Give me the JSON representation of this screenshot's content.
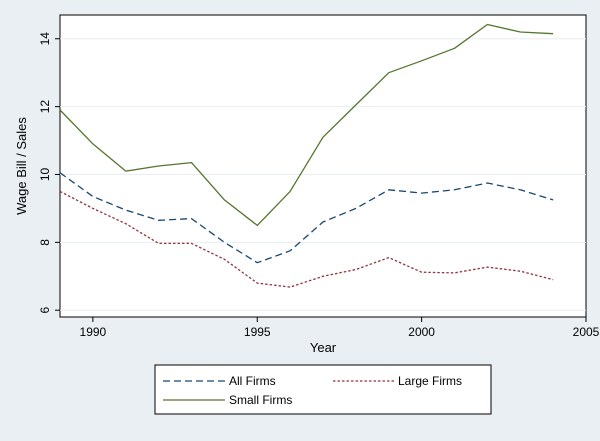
{
  "chart_data": {
    "type": "line",
    "title": "",
    "xlabel": "Year",
    "ylabel": "Wage Bill / Sales",
    "xlim": [
      1989,
      2005
    ],
    "ylim": [
      5.8,
      14.7
    ],
    "xticks": [
      1990,
      1995,
      2000,
      2005
    ],
    "yticks": [
      6,
      8,
      10,
      12,
      14
    ],
    "grid": "horizontal",
    "x": [
      1989,
      1990,
      1991,
      1992,
      1993,
      1994,
      1995,
      1996,
      1997,
      1998,
      1999,
      2000,
      2001,
      2002,
      2003,
      2004
    ],
    "series": [
      {
        "name": "All Firms",
        "style": "dashed",
        "color": "#1a476f",
        "values": [
          10.05,
          9.35,
          8.95,
          8.65,
          8.7,
          8.0,
          7.4,
          7.75,
          8.6,
          9.0,
          9.55,
          9.45,
          9.55,
          9.75,
          9.55,
          9.25
        ]
      },
      {
        "name": "Large Firms",
        "style": "dotted",
        "color": "#90353b",
        "values": [
          9.5,
          9.0,
          8.55,
          7.97,
          7.97,
          7.5,
          6.8,
          6.68,
          7.0,
          7.2,
          7.55,
          7.12,
          7.1,
          7.27,
          7.15,
          6.9
        ]
      },
      {
        "name": "Small Firms",
        "style": "solid",
        "color": "#55752f",
        "values": [
          11.9,
          10.9,
          10.1,
          10.25,
          10.35,
          9.25,
          8.5,
          9.5,
          11.1,
          12.05,
          13.0,
          13.35,
          13.72,
          14.42,
          14.2,
          14.15
        ]
      }
    ],
    "legend": {
      "position": "bottom",
      "entries": [
        "All Firms",
        "Large Firms",
        "Small Firms"
      ]
    }
  }
}
